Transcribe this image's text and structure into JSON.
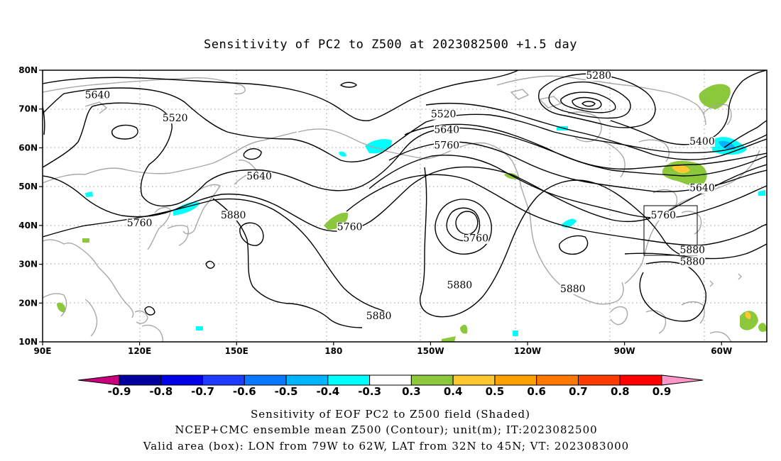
{
  "title": "Sensitivity of PC2 to Z500 at 2023082500 +1.5 day",
  "axes": {
    "lat_ticks": [
      "80N",
      "70N",
      "60N",
      "50N",
      "40N",
      "30N",
      "20N",
      "10N"
    ],
    "lon_ticks": [
      "90E",
      "120E",
      "150E",
      "180",
      "150W",
      "120W",
      "90W",
      "60W"
    ],
    "lat_range": [
      10,
      80
    ],
    "lon_range": [
      90,
      314
    ]
  },
  "contour_labels": [
    {
      "text": "5640",
      "lon": 107,
      "lat": 73
    },
    {
      "text": "5520",
      "lon": 131,
      "lat": 67
    },
    {
      "text": "5280",
      "lon": 262,
      "lat": 78
    },
    {
      "text": "5520",
      "lon": 214,
      "lat": 68
    },
    {
      "text": "5640",
      "lon": 215,
      "lat": 64
    },
    {
      "text": "5760",
      "lon": 215,
      "lat": 60
    },
    {
      "text": "5400",
      "lon": 294,
      "lat": 61
    },
    {
      "text": "5640",
      "lon": 157,
      "lat": 52
    },
    {
      "text": "5640",
      "lon": 294,
      "lat": 49
    },
    {
      "text": "5880",
      "lon": 149,
      "lat": 42
    },
    {
      "text": "5760",
      "lon": 120,
      "lat": 40
    },
    {
      "text": "5760",
      "lon": 185,
      "lat": 39
    },
    {
      "text": "5760",
      "lon": 282,
      "lat": 42
    },
    {
      "text": "5760",
      "lon": 224,
      "lat": 36
    },
    {
      "text": "5880",
      "lon": 291,
      "lat": 33
    },
    {
      "text": "5880",
      "lon": 291,
      "lat": 30
    },
    {
      "text": "5880",
      "lon": 219,
      "lat": 24
    },
    {
      "text": "5880",
      "lon": 254,
      "lat": 23
    },
    {
      "text": "5880",
      "lon": 194,
      "lat": 16
    }
  ],
  "valid_box": {
    "lon_min": 281,
    "lon_max": 298,
    "lat_min": 32,
    "lat_max": 45
  },
  "colorbar": {
    "colors": [
      "#0000a0",
      "#0000e6",
      "#1e3cff",
      "#0a78ff",
      "#00b4ff",
      "#00ffff",
      "#ffffff",
      "#8cc83c",
      "#ffc832",
      "#ffa000",
      "#ff7800",
      "#ff3c00",
      "#ff0000"
    ],
    "left_triangle_color": "#c8007d",
    "right_triangle_color": "#ff96c8",
    "ticks": [
      "-0.9",
      "-0.8",
      "-0.7",
      "-0.6",
      "-0.5",
      "-0.4",
      "-0.3",
      "0.3",
      "0.4",
      "0.5",
      "0.6",
      "0.7",
      "0.8",
      "0.9"
    ]
  },
  "caption": {
    "line1": "Sensitivity of EOF PC2 to Z500 field (Shaded)",
    "line2": "NCEP+CMC ensemble mean Z500 (Contour); unit(m); IT:2023082500",
    "line3": "Valid area (box): LON from 79W to 62W, LAT from 32N to 45N; VT: 2023083000"
  }
}
